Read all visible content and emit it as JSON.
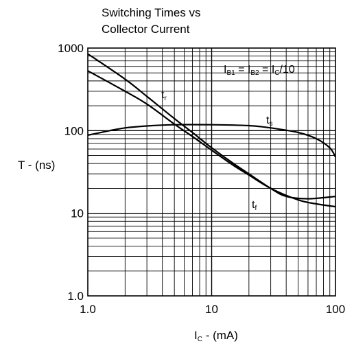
{
  "chart_data": {
    "type": "line",
    "title_lines": [
      "Switching Times vs",
      "Collector Current"
    ],
    "xlabel_main": "I",
    "xlabel_sub": "C",
    "xlabel_rest": " - (mA)",
    "ylabel": "T - (ns)",
    "xscale": "log",
    "yscale": "log",
    "xlim": [
      1,
      100
    ],
    "ylim": [
      1,
      1000
    ],
    "x_ticks": [
      "1.0",
      "10",
      "100"
    ],
    "y_ticks": [
      "1.0",
      "10",
      "100",
      "1000"
    ],
    "grid": true,
    "annotation": {
      "parts": [
        {
          "main": "I",
          "sub": "B1"
        },
        {
          "main": " = I",
          "sub": "B2"
        },
        {
          "main": " = I",
          "sub": "C"
        },
        {
          "main": "/10",
          "sub": ""
        }
      ]
    },
    "series": [
      {
        "name_main": "t",
        "name_sub": "r",
        "x": [
          1,
          2,
          3,
          5,
          7,
          10,
          15,
          20,
          30,
          40,
          60,
          100
        ],
        "y": [
          850,
          420,
          260,
          140,
          95,
          62,
          40,
          30,
          20,
          16,
          15,
          16
        ]
      },
      {
        "name_main": "t",
        "name_sub": "s",
        "x": [
          1,
          1.5,
          2,
          3,
          5,
          10,
          20,
          30,
          50,
          70,
          90,
          100
        ],
        "y": [
          88,
          100,
          108,
          114,
          118,
          118,
          115,
          108,
          95,
          80,
          62,
          48
        ]
      },
      {
        "name_main": "t",
        "name_sub": "f",
        "x": [
          1,
          2,
          3,
          5,
          7,
          10,
          15,
          20,
          30,
          50,
          70,
          100
        ],
        "y": [
          530,
          300,
          210,
          120,
          85,
          58,
          38,
          29,
          20,
          14.5,
          13,
          12
        ]
      }
    ]
  }
}
